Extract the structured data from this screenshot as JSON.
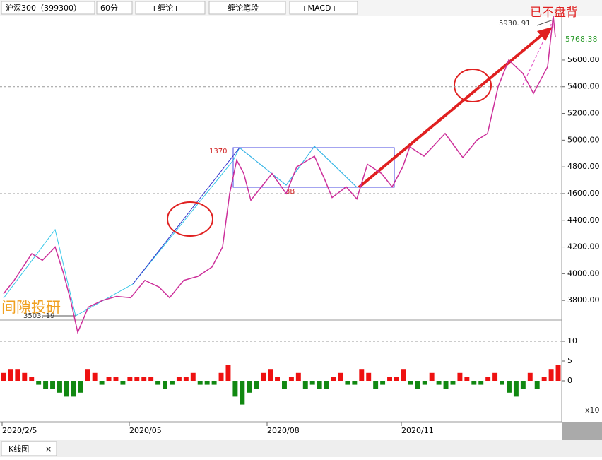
{
  "toolbar": {
    "symbol": "沪深300（399300）",
    "period": "60分",
    "indicator1": "+缠论+",
    "indicator2": "缠论笔段",
    "indicator3": "+MACD+"
  },
  "tab": "K线图",
  "chart_data": {
    "type": "line",
    "annotations": {
      "top_note": "已不盘背",
      "peak": "5930. 91",
      "last": "5768.38",
      "pen_start": "1370",
      "buy": "3B",
      "low": "3503. 19",
      "watermark": "间隙投研",
      "macd_unit": "x10"
    },
    "x": [
      0.5,
      2,
      4.5,
      6,
      7.8,
      9,
      10,
      11,
      12.5,
      14.5,
      16.5,
      18.5,
      20.5,
      22.5,
      24,
      26,
      28,
      30,
      31.5,
      32.5,
      33.5,
      34.5,
      35.5,
      37,
      38.5,
      40.5,
      42,
      44.5,
      46,
      47,
      49,
      50.5,
      52,
      54,
      55.5,
      57,
      58,
      60,
      63,
      65.5,
      67.5,
      69,
      70.5,
      72,
      74,
      75.5,
      76.5,
      77.5,
      78.3,
      78.6
    ],
    "series": [
      {
        "color": "#cc2f9a",
        "values": [
          3850,
          3950,
          4150,
          4100,
          4200,
          4000,
          3800,
          3560,
          3750,
          3800,
          3830,
          3820,
          3950,
          3900,
          3820,
          3950,
          3980,
          4050,
          4200,
          4600,
          4850,
          4750,
          4550,
          4650,
          4750,
          4600,
          4800,
          4880,
          4700,
          4570,
          4650,
          4560,
          4820,
          4750,
          4650,
          4800,
          4950,
          4880,
          5050,
          4870,
          5000,
          5050,
          5400,
          5600,
          5500,
          5350,
          5450,
          5550,
          5930,
          5770
        ]
      }
    ],
    "xlim": [
      0,
      79.5
    ],
    "xticks": [
      {
        "value": 0.3,
        "label": "2020/2/5"
      },
      {
        "value": 18.3,
        "label": "2020/05"
      },
      {
        "value": 37.8,
        "label": "2020/08"
      },
      {
        "value": 56.8,
        "label": "2020/11"
      }
    ],
    "ylim": [
      3658,
      5933
    ],
    "yticks": [
      {
        "value": 5600,
        "label": "5600.00"
      },
      {
        "value": 5400,
        "label": "5400.00"
      },
      {
        "value": 5200,
        "label": "5200.00"
      },
      {
        "value": 5000,
        "label": "5000.00"
      },
      {
        "value": 4800,
        "label": "4800.00"
      },
      {
        "value": 4600,
        "label": "4600.00"
      },
      {
        "value": 4400,
        "label": "4400.00"
      },
      {
        "value": 4200,
        "label": "4200.00"
      },
      {
        "value": 4000,
        "label": "4000.00"
      },
      {
        "value": 3800,
        "label": "3800.00"
      }
    ],
    "macd": {
      "type": "bar",
      "positive_color": "#ee1111",
      "negative_color": "#118811",
      "values": [
        2,
        3,
        3,
        2,
        1,
        -1,
        -2,
        -2,
        -3,
        -4,
        -4,
        -3,
        3,
        2,
        -1,
        1,
        1,
        -1,
        1,
        1,
        1,
        1,
        -1,
        -2,
        -1,
        1,
        1,
        2,
        -1,
        -1,
        -1,
        2,
        4,
        -4,
        -6,
        -3,
        -2,
        2,
        3,
        1,
        -2,
        1,
        2,
        -2,
        -1,
        -2,
        -2,
        1,
        2,
        -1,
        -1,
        3,
        2,
        -2,
        -1,
        1,
        1,
        3,
        -1,
        -2,
        -1,
        2,
        -1,
        -2,
        -1,
        2,
        1,
        -1,
        -1,
        1,
        2,
        -1,
        -3,
        -4,
        -2,
        2,
        -2,
        1,
        3,
        4
      ],
      "ylim": [
        -10,
        15
      ],
      "yticks": [
        10,
        5,
        0
      ]
    }
  }
}
